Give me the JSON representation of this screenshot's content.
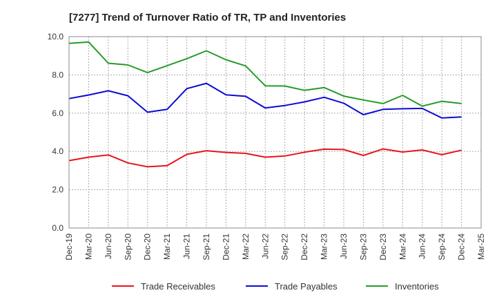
{
  "chart_data": {
    "type": "line",
    "title": "[7277]  Trend of Turnover Ratio of TR, TP and Inventories",
    "xlabel": "",
    "ylabel": "",
    "ylim": [
      0,
      10
    ],
    "yticks": [
      "0.0",
      "2.0",
      "4.0",
      "6.0",
      "8.0",
      "10.0"
    ],
    "grid": true,
    "legend_position": "bottom",
    "x_tick_labels": [
      "Dec-19",
      "Mar-20",
      "Jun-20",
      "Sep-20",
      "Dec-20",
      "Mar-21",
      "Jun-21",
      "Sep-21",
      "Dec-21",
      "Mar-22",
      "Jun-22",
      "Sep-22",
      "Dec-22",
      "Mar-23",
      "Jun-23",
      "Sep-23",
      "Dec-23",
      "Mar-24",
      "Jun-24",
      "Sep-24",
      "Dec-24",
      "Mar-25"
    ],
    "x": [
      "Dec-19",
      "Mar-20",
      "Jun-20",
      "Sep-20",
      "Dec-20",
      "Mar-21",
      "Jun-21",
      "Sep-21",
      "Dec-21",
      "Mar-22",
      "Jun-22",
      "Sep-22",
      "Dec-22",
      "Mar-23",
      "Jun-23",
      "Sep-23",
      "Dec-23",
      "Mar-24",
      "Jun-24",
      "Sep-24",
      "Dec-24"
    ],
    "series": [
      {
        "name": "Trade Receivables",
        "color": "#e8141c",
        "values": [
          3.52,
          3.7,
          3.82,
          3.4,
          3.2,
          3.26,
          3.85,
          4.04,
          3.95,
          3.9,
          3.7,
          3.76,
          3.96,
          4.12,
          4.1,
          3.79,
          4.13,
          3.97,
          4.08,
          3.83,
          4.07
        ]
      },
      {
        "name": "Trade Payables",
        "color": "#0a0ad4",
        "values": [
          6.76,
          6.95,
          7.17,
          6.91,
          6.05,
          6.2,
          7.28,
          7.56,
          6.96,
          6.88,
          6.27,
          6.4,
          6.59,
          6.83,
          6.52,
          5.92,
          6.2,
          6.23,
          6.25,
          5.75,
          5.8
        ]
      },
      {
        "name": "Inventories",
        "color": "#259a29",
        "values": [
          9.65,
          9.72,
          8.61,
          8.52,
          8.12,
          8.48,
          8.85,
          9.26,
          8.79,
          8.47,
          7.43,
          7.42,
          7.19,
          7.34,
          6.89,
          6.69,
          6.5,
          6.93,
          6.37,
          6.62,
          6.5
        ]
      }
    ]
  }
}
